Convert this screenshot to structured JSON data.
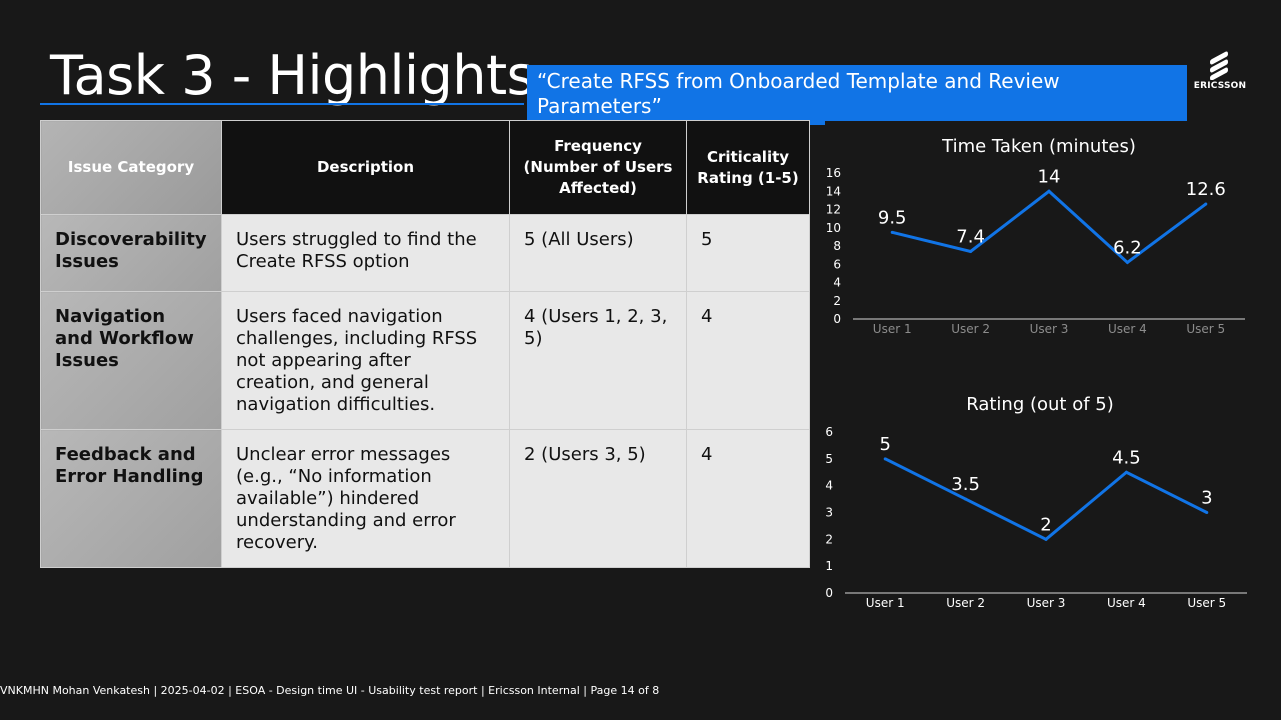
{
  "slide": {
    "title": "Task 3 - Highlights",
    "subtitle": "“Create RFSS from Onboarded Template and Review Parameters”",
    "logo_text": "ERICSSON"
  },
  "table": {
    "headers": [
      "Issue Category",
      "Description",
      "Frequency (Number of Users Affected)",
      "Criticality Rating (1-5)"
    ],
    "rows": [
      {
        "category": "Discoverability Issues",
        "description": "Users struggled to find the Create RFSS option",
        "frequency": "5 (All Users)",
        "criticality": "5"
      },
      {
        "category": "Navigation and Workflow Issues",
        "description": "Users faced navigation challenges, including RFSS not appearing after creation, and general navigation difficulties.",
        "frequency": "4 (Users 1, 2, 3, 5)",
        "criticality": "4"
      },
      {
        "category": "Feedback and Error Handling",
        "description": "Unclear error messages (e.g., “No information available”) hindered understanding and error recovery.",
        "frequency": "2 (Users 3, 5)",
        "criticality": "4"
      }
    ]
  },
  "chart_data": [
    {
      "type": "line",
      "title": "Time Taken (minutes)",
      "categories": [
        "User 1",
        "User 2",
        "User 3",
        "User 4",
        "User 5"
      ],
      "values": [
        9.5,
        7.4,
        14,
        6.2,
        12.6
      ],
      "data_labels": [
        "9.5",
        "7.4",
        "14",
        "6.2",
        "12.6"
      ],
      "yticks": [
        "0",
        "2",
        "4",
        "6",
        "8",
        "10",
        "12",
        "14",
        "16"
      ],
      "ylim": [
        0,
        16
      ],
      "grid": false,
      "line_color": "#1174e6",
      "xtick_color": "#8c8c8c"
    },
    {
      "type": "line",
      "title": "Rating (out of 5)",
      "categories": [
        "User 1",
        "User 2",
        "User 3",
        "User 4",
        "User 5"
      ],
      "values": [
        5,
        3.5,
        2,
        4.5,
        3
      ],
      "data_labels": [
        "5",
        "3.5",
        "2",
        "4.5",
        "3"
      ],
      "yticks": [
        "0",
        "1",
        "2",
        "3",
        "4",
        "5",
        "6"
      ],
      "ylim": [
        0,
        6
      ],
      "grid": false,
      "line_color": "#1174e6",
      "xtick_color": "#ffffff"
    }
  ],
  "footer": {
    "text": "VNKMHN Mohan Venkatesh  |  2025-04-02  |  ESOA - Design time UI - Usability test report  |  Ericsson Internal  |  Page 14 of 8"
  }
}
